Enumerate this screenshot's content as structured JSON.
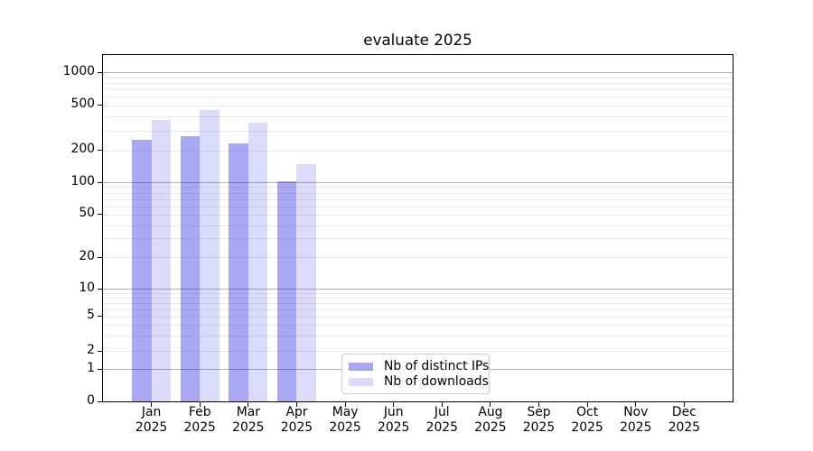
{
  "chart_data": {
    "type": "bar",
    "title": "evaluate 2025",
    "x_tick_labels": [
      {
        "month": "Jan",
        "year": "2025"
      },
      {
        "month": "Feb",
        "year": "2025"
      },
      {
        "month": "Mar",
        "year": "2025"
      },
      {
        "month": "Apr",
        "year": "2025"
      },
      {
        "month": "May",
        "year": "2025"
      },
      {
        "month": "Jun",
        "year": "2025"
      },
      {
        "month": "Jul",
        "year": "2025"
      },
      {
        "month": "Aug",
        "year": "2025"
      },
      {
        "month": "Sep",
        "year": "2025"
      },
      {
        "month": "Oct",
        "year": "2025"
      },
      {
        "month": "Nov",
        "year": "2025"
      },
      {
        "month": "Dec",
        "year": "2025"
      }
    ],
    "series": [
      {
        "name": "Nb of distinct IPs",
        "color": "rgba(0,0,220,0.34)",
        "values": [
          250,
          270,
          230,
          102,
          null,
          null,
          null,
          null,
          null,
          null,
          null,
          null
        ]
      },
      {
        "name": "Nb of downloads",
        "color": "rgba(0,0,220,0.14)",
        "values": [
          370,
          455,
          350,
          150,
          null,
          null,
          null,
          null,
          null,
          null,
          null,
          null
        ]
      }
    ],
    "yscale": "symlog (linear 0-1, log-like above 1)",
    "yticks": [
      0,
      1,
      2,
      5,
      10,
      20,
      50,
      100,
      200,
      500,
      1000
    ],
    "ylim": [
      0,
      1440
    ],
    "grid": {
      "major": [
        1,
        10,
        100,
        1000
      ],
      "minor": [
        2,
        3,
        4,
        5,
        6,
        7,
        8,
        9,
        20,
        30,
        40,
        50,
        60,
        70,
        80,
        90,
        200,
        300,
        400,
        500,
        600,
        700,
        800,
        900
      ]
    },
    "legend_location": "lower center-left"
  }
}
